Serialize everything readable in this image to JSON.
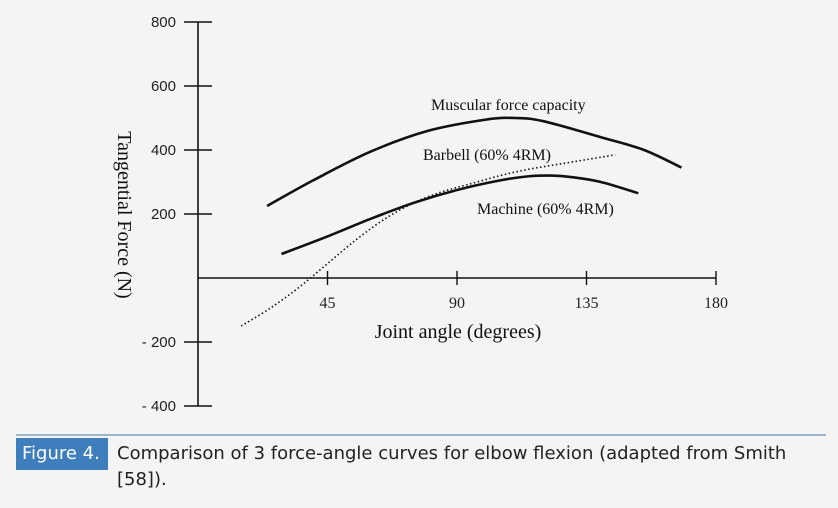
{
  "chart_data": {
    "type": "line",
    "xlabel": "Joint angle (degrees)",
    "ylabel": "Tangential Force (N)",
    "x_ticks": [
      45,
      90,
      135,
      180
    ],
    "y_ticks": [
      800,
      600,
      400,
      200,
      -200,
      -400
    ],
    "xlim": [
      0,
      180
    ],
    "ylim": [
      -400,
      800
    ],
    "grid": false,
    "legend": "none",
    "series": [
      {
        "name": "Muscular force capacity",
        "style": "solid",
        "x": [
          24,
          40,
          60,
          80,
          100,
          110,
          120,
          140,
          155,
          168
        ],
        "y": [
          225,
          305,
          395,
          460,
          495,
          500,
          490,
          440,
          400,
          345
        ]
      },
      {
        "name": "Barbell (60%  4RM)",
        "style": "dotted",
        "x": [
          15,
          25,
          35,
          45,
          55,
          65,
          75,
          85,
          95,
          105,
          115,
          125,
          135,
          145
        ],
        "y": [
          -150,
          -95,
          -30,
          45,
          120,
          185,
          235,
          270,
          295,
          320,
          340,
          355,
          370,
          385
        ]
      },
      {
        "name": "Machine (60%  4RM)",
        "style": "solid",
        "x": [
          29,
          45,
          60,
          75,
          90,
          105,
          115,
          123,
          130,
          140,
          153
        ],
        "y": [
          75,
          130,
          185,
          235,
          275,
          305,
          318,
          320,
          315,
          300,
          265
        ]
      }
    ]
  },
  "caption": {
    "label": "Figure 4.",
    "text": "Comparison of 3 force-angle curves for elbow flexion (adapted from Smith [58])."
  },
  "colors": {
    "caption_label_bg": "#3f7ebc",
    "caption_rule": "#9db6c8",
    "background": "#f4f4f4",
    "line": "#111111"
  }
}
